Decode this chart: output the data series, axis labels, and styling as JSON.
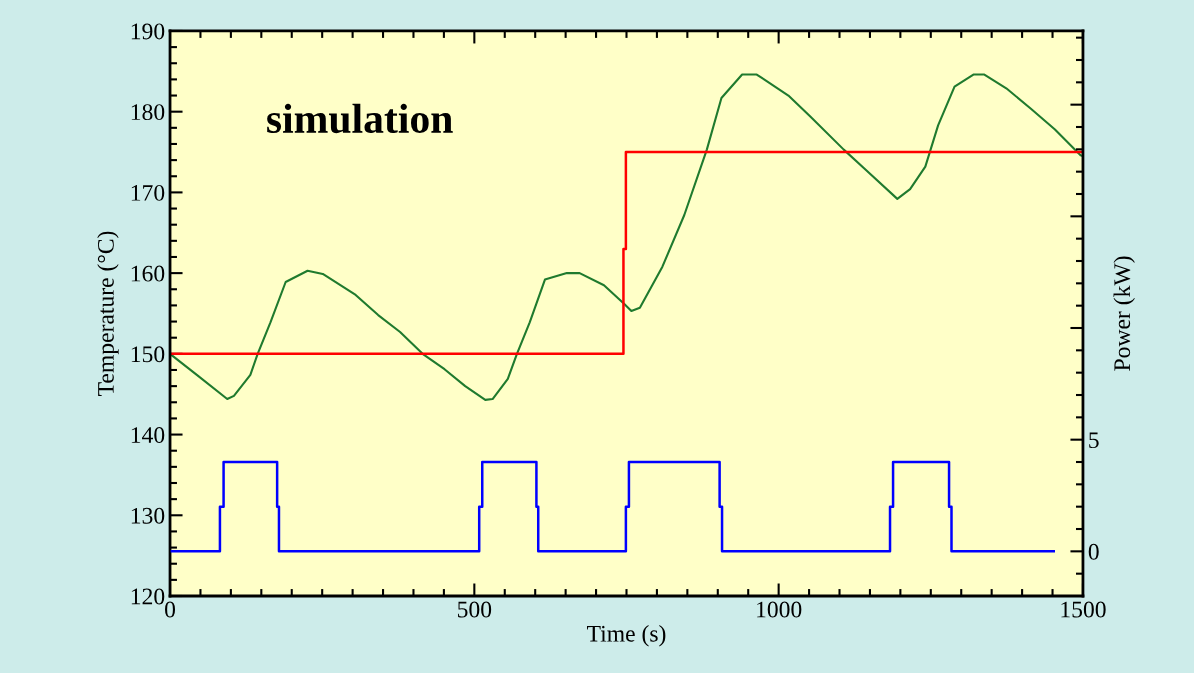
{
  "chart_data": {
    "type": "line",
    "xlabel": "Time (s)",
    "ylabel": "Temperature (°C)",
    "y2label": "Power (kW)",
    "annotations": [
      "simulation"
    ],
    "xlim": [
      0,
      1500
    ],
    "xticks": [
      0,
      {
        "value": 50,
        "label": null
      },
      {
        "value": 100,
        "label": null
      },
      {
        "value": 150,
        "label": null
      },
      {
        "value": 200,
        "label": null
      },
      {
        "value": 250,
        "label": null
      },
      {
        "value": 300,
        "label": null
      },
      {
        "value": 350,
        "label": null
      },
      {
        "value": 400,
        "label": null
      },
      {
        "value": 450,
        "label": null
      },
      500,
      {
        "value": 550,
        "label": null
      },
      {
        "value": 600,
        "label": null
      },
      {
        "value": 650,
        "label": null
      },
      {
        "value": 700,
        "label": null
      },
      {
        "value": 750,
        "label": null
      },
      {
        "value": 800,
        "label": null
      },
      {
        "value": 850,
        "label": null
      },
      {
        "value": 900,
        "label": null
      },
      {
        "value": 950,
        "label": null
      },
      1000,
      {
        "value": 1050,
        "label": null
      },
      {
        "value": 1100,
        "label": null
      },
      {
        "value": 1150,
        "label": null
      },
      {
        "value": 1200,
        "label": null
      },
      {
        "value": 1250,
        "label": null
      },
      {
        "value": 1300,
        "label": null
      },
      {
        "value": 1350,
        "label": null
      },
      {
        "value": 1400,
        "label": null
      },
      {
        "value": 1450,
        "label": null
      },
      1500
    ],
    "ylim": [
      120,
      190
    ],
    "yticks": [
      120,
      {
        "value": 122,
        "label": null
      },
      {
        "value": 124,
        "label": null
      },
      {
        "value": 126,
        "label": null
      },
      {
        "value": 128,
        "label": null
      },
      130,
      {
        "value": 132,
        "label": null
      },
      {
        "value": 134,
        "label": null
      },
      {
        "value": 136,
        "label": null
      },
      {
        "value": 138,
        "label": null
      },
      140,
      {
        "value": 142,
        "label": null
      },
      {
        "value": 144,
        "label": null
      },
      {
        "value": 146,
        "label": null
      },
      {
        "value": 148,
        "label": null
      },
      150,
      {
        "value": 152,
        "label": null
      },
      {
        "value": 154,
        "label": null
      },
      {
        "value": 156,
        "label": null
      },
      {
        "value": 158,
        "label": null
      },
      160,
      {
        "value": 162,
        "label": null
      },
      {
        "value": 164,
        "label": null
      },
      {
        "value": 166,
        "label": null
      },
      {
        "value": 168,
        "label": null
      },
      170,
      {
        "value": 172,
        "label": null
      },
      {
        "value": 174,
        "label": null
      },
      {
        "value": 176,
        "label": null
      },
      {
        "value": 178,
        "label": null
      },
      180,
      {
        "value": 182,
        "label": null
      },
      {
        "value": 184,
        "label": null
      },
      {
        "value": 186,
        "label": null
      },
      {
        "value": 188,
        "label": null
      },
      190
    ],
    "y2lim": [
      -2,
      23.3
    ],
    "y2ticks": [
      {
        "value": -1,
        "label": null
      },
      0,
      {
        "value": 1,
        "label": null
      },
      {
        "value": 2,
        "label": null
      },
      {
        "value": 3,
        "label": null
      },
      {
        "value": 4,
        "label": null
      },
      5,
      {
        "value": 6,
        "label": null
      },
      {
        "value": 7,
        "label": null
      },
      {
        "value": 8,
        "label": null
      },
      {
        "value": 9,
        "label": null
      },
      {
        "value": 10,
        "label": null
      },
      {
        "value": 11,
        "label": null
      },
      {
        "value": 12,
        "label": null
      },
      {
        "value": 13,
        "label": null
      },
      {
        "value": 14,
        "label": null
      },
      {
        "value": 15,
        "label": null
      },
      {
        "value": 16,
        "label": null
      },
      {
        "value": 17,
        "label": null
      },
      {
        "value": 18,
        "label": null
      },
      {
        "value": 19,
        "label": null
      },
      {
        "value": 20,
        "label": null
      },
      {
        "value": 21,
        "label": null
      },
      {
        "value": 22,
        "label": null
      },
      {
        "value": 23,
        "label": null
      }
    ],
    "grid": false,
    "marker": "none",
    "line_style": "solid",
    "series": [
      {
        "color": "#1f7a2e",
        "x": [
          0,
          44,
          94,
          105,
          132,
          144,
          165,
          190,
          226,
          251,
          305,
          342,
          378,
          415,
          451,
          485,
          518,
          530,
          555,
          570,
          591,
          616,
          652,
          673,
          713,
          746,
          758,
          772,
          809,
          845,
          882,
          906,
          940,
          964,
          1016,
          1052,
          1107,
          1143,
          1195,
          1216,
          1241,
          1262,
          1289,
          1320,
          1338,
          1374,
          1414,
          1454,
          1496,
          1500
        ],
        "values": [
          150.0,
          147.4,
          144.4,
          144.8,
          147.4,
          150.0,
          153.9,
          158.9,
          160.3,
          159.9,
          157.3,
          154.8,
          152.7,
          150.0,
          148.1,
          146.0,
          144.3,
          144.4,
          146.9,
          150.0,
          153.9,
          159.2,
          160.0,
          160.0,
          158.5,
          156.2,
          155.3,
          155.7,
          160.8,
          167.2,
          175.3,
          181.7,
          184.6,
          184.6,
          182.0,
          179.4,
          175.3,
          172.8,
          169.2,
          170.4,
          173.2,
          178.3,
          183.1,
          184.6,
          184.6,
          182.9,
          180.4,
          177.8,
          174.6,
          174.5
        ]
      },
      {
        "type": "step",
        "color": "#ff0000",
        "x": [
          0,
          745,
          749,
          1500
        ],
        "values": [
          150,
          163,
          175,
          175
        ]
      },
      {
        "type": "step",
        "axis": "y2",
        "color": "#0000ff",
        "x": [
          0,
          82,
          88,
          176,
          179,
          508,
          513,
          602,
          605,
          749,
          754,
          903,
          907,
          1183,
          1188,
          1280,
          1284,
          1452
        ],
        "values": [
          0,
          2,
          4,
          2,
          0,
          2,
          4,
          2,
          0,
          2,
          4,
          2,
          0,
          2,
          4,
          2,
          0,
          0
        ]
      }
    ]
  }
}
